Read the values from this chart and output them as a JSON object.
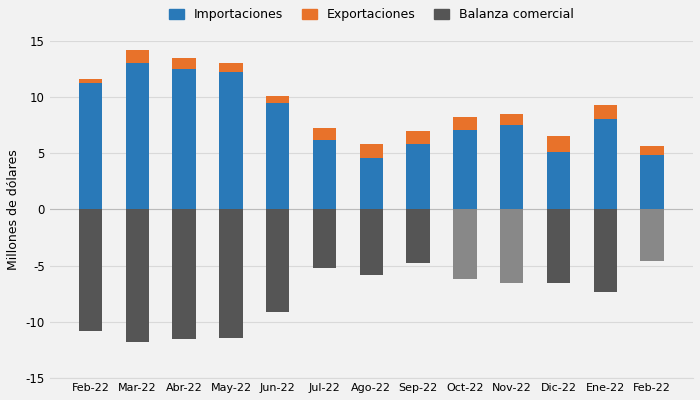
{
  "months": [
    "Feb-22",
    "Mar-22",
    "Abr-22",
    "May-22",
    "Jun-22",
    "Jul-22",
    "Ago-22",
    "Sep-22",
    "Oct-22",
    "Nov-22",
    "Dic-22",
    "Ene-22",
    "Feb-22"
  ],
  "importaciones": [
    11.2,
    13.0,
    12.5,
    12.2,
    9.5,
    6.2,
    4.6,
    5.8,
    7.1,
    7.5,
    5.1,
    8.0,
    4.8
  ],
  "exportaciones": [
    0.4,
    1.2,
    1.0,
    0.8,
    0.6,
    1.0,
    1.2,
    1.2,
    1.1,
    1.0,
    1.4,
    1.3,
    0.8
  ],
  "balanza": [
    -10.8,
    -11.8,
    -11.5,
    -11.4,
    -9.1,
    -5.2,
    -5.8,
    -4.8,
    -6.2,
    -6.5,
    -6.5,
    -7.3,
    -4.6
  ],
  "color_importaciones": "#2979b8",
  "color_exportaciones": "#e8722a",
  "color_balanza_dark": "#555555",
  "color_balanza_light": "#888888",
  "balanza_dark_months": [
    0,
    1,
    2,
    3,
    4,
    5,
    6,
    7,
    10,
    11
  ],
  "balanza_light_months": [
    8,
    9,
    12
  ],
  "ylim": [
    -15,
    15
  ],
  "yticks": [
    -15,
    -10,
    -5,
    0,
    5,
    10,
    15
  ],
  "ylabel": "Millones de dólares",
  "legend_labels": [
    "Importaciones",
    "Exportaciones",
    "Balanza comercial"
  ],
  "bg_color": "#f2f2f2",
  "grid_color": "#d9d9d9",
  "bar_width": 0.5
}
